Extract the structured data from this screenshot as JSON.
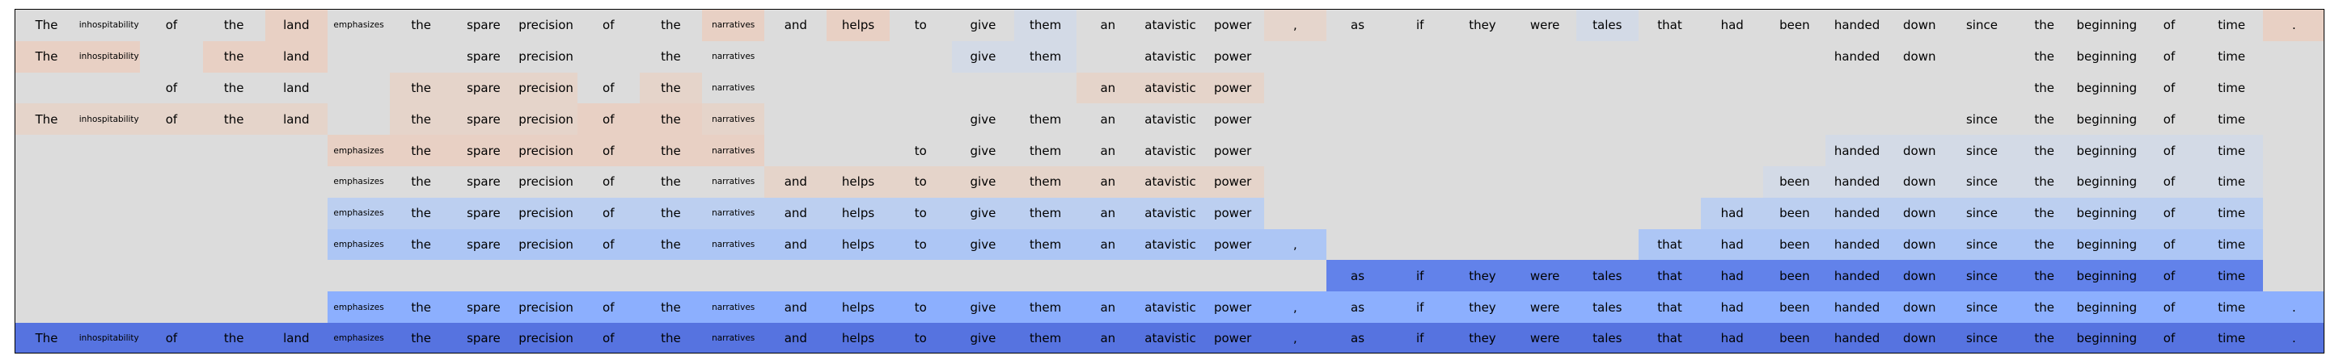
{
  "tokens": [
    "The",
    "inhospitability",
    "of",
    "the",
    "land",
    "emphasizes",
    "the",
    "spare",
    "precision",
    "of",
    "the",
    "narratives",
    "and",
    "helps",
    "to",
    "give",
    "them",
    "an",
    "atavistic",
    "power",
    ",",
    "as",
    "if",
    "they",
    "were",
    "tales",
    "that",
    "had",
    "been",
    "handed",
    "down",
    "since",
    "the",
    "beginning",
    "of",
    "time",
    "."
  ],
  "rows": [
    {
      "tokens": [
        {
          "i": 0,
          "c": "#dcdcdc"
        },
        {
          "i": 1,
          "c": "#dcdcdc"
        },
        {
          "i": 2,
          "c": "#dcdcdc"
        },
        {
          "i": 3,
          "c": "#dcdcdc"
        },
        {
          "i": 4,
          "c": "#e8d0c4"
        },
        {
          "i": 5,
          "c": "#dcdcdc"
        },
        {
          "i": 6,
          "c": "#dcdcdc"
        },
        {
          "i": 7,
          "c": "#dcdcdc"
        },
        {
          "i": 8,
          "c": "#dcdcdc"
        },
        {
          "i": 9,
          "c": "#dcdcdc"
        },
        {
          "i": 10,
          "c": "#dcdcdc"
        },
        {
          "i": 11,
          "c": "#e8d0c4"
        },
        {
          "i": 12,
          "c": "#dcdcdc"
        },
        {
          "i": 13,
          "c": "#e8d0c4"
        },
        {
          "i": 14,
          "c": "#dcdcdc"
        },
        {
          "i": 15,
          "c": "#dcdcdc"
        },
        {
          "i": 16,
          "c": "#d3dae6"
        },
        {
          "i": 17,
          "c": "#dcdcdc"
        },
        {
          "i": 18,
          "c": "#dcdcdc"
        },
        {
          "i": 19,
          "c": "#dcdcdc"
        },
        {
          "i": 20,
          "c": "#e5d5cc"
        },
        {
          "i": 21,
          "c": "#dcdcdc"
        },
        {
          "i": 22,
          "c": "#dcdcdc"
        },
        {
          "i": 23,
          "c": "#dcdcdc"
        },
        {
          "i": 24,
          "c": "#dcdcdc"
        },
        {
          "i": 25,
          "c": "#d3dae6"
        },
        {
          "i": 26,
          "c": "#dcdcdc"
        },
        {
          "i": 27,
          "c": "#dcdcdc"
        },
        {
          "i": 28,
          "c": "#dcdcdc"
        },
        {
          "i": 29,
          "c": "#dcdcdc"
        },
        {
          "i": 30,
          "c": "#dcdcdc"
        },
        {
          "i": 31,
          "c": "#dcdcdc"
        },
        {
          "i": 32,
          "c": "#dcdcdc"
        },
        {
          "i": 33,
          "c": "#dcdcdc"
        },
        {
          "i": 34,
          "c": "#dcdcdc"
        },
        {
          "i": 35,
          "c": "#dcdcdc"
        },
        {
          "i": 36,
          "c": "#e8d0c4"
        }
      ]
    },
    {
      "tokens": [
        {
          "i": 0,
          "c": "#e8d0c4"
        },
        {
          "i": 1,
          "c": "#e8d0c4"
        },
        {
          "i": 3,
          "c": "#e8d0c4"
        },
        {
          "i": 4,
          "c": "#e8d0c4"
        },
        {
          "i": 7,
          "c": "#dcdcdc"
        },
        {
          "i": 8,
          "c": "#dcdcdc"
        },
        {
          "i": 10,
          "c": "#dcdcdc"
        },
        {
          "i": 11,
          "c": "#dcdcdc"
        },
        {
          "i": 15,
          "c": "#d3dae6"
        },
        {
          "i": 16,
          "c": "#d3dae6"
        },
        {
          "i": 18,
          "c": "#dcdcdc"
        },
        {
          "i": 19,
          "c": "#dcdcdc"
        },
        {
          "i": 29,
          "c": "#dcdcdc"
        },
        {
          "i": 30,
          "c": "#dcdcdc"
        },
        {
          "i": 32,
          "c": "#dcdcdc"
        },
        {
          "i": 33,
          "c": "#dcdcdc"
        },
        {
          "i": 34,
          "c": "#dcdcdc"
        },
        {
          "i": 35,
          "c": "#dcdcdc"
        }
      ]
    },
    {
      "tokens": [
        {
          "i": 2,
          "c": "#dcdcdc"
        },
        {
          "i": 3,
          "c": "#dcdcdc"
        },
        {
          "i": 4,
          "c": "#dcdcdc"
        },
        {
          "i": 6,
          "c": "#e5d4ca"
        },
        {
          "i": 7,
          "c": "#e5d4ca"
        },
        {
          "i": 8,
          "c": "#e5d4ca"
        },
        {
          "i": 9,
          "c": "#dcdcdc"
        },
        {
          "i": 10,
          "c": "#e5d4ca"
        },
        {
          "i": 11,
          "c": "#dcdcdc"
        },
        {
          "i": 17,
          "c": "#e5d4ca"
        },
        {
          "i": 18,
          "c": "#e5d4ca"
        },
        {
          "i": 19,
          "c": "#e5d4ca"
        },
        {
          "i": 32,
          "c": "#dcdcdc"
        },
        {
          "i": 33,
          "c": "#dcdcdc"
        },
        {
          "i": 34,
          "c": "#dcdcdc"
        },
        {
          "i": 35,
          "c": "#dcdcdc"
        }
      ]
    },
    {
      "tokens": [
        {
          "i": 0,
          "c": "#e5d4ca"
        },
        {
          "i": 1,
          "c": "#e5d4ca"
        },
        {
          "i": 2,
          "c": "#e5d4ca"
        },
        {
          "i": 3,
          "c": "#e5d4ca"
        },
        {
          "i": 4,
          "c": "#e5d4ca"
        },
        {
          "i": 6,
          "c": "#e5d4ca"
        },
        {
          "i": 7,
          "c": "#e5d4ca"
        },
        {
          "i": 8,
          "c": "#e5d4ca"
        },
        {
          "i": 9,
          "c": "#e8d0c4"
        },
        {
          "i": 10,
          "c": "#e8d0c4"
        },
        {
          "i": 11,
          "c": "#e5d4ca"
        },
        {
          "i": 15,
          "c": "#dcdcdc"
        },
        {
          "i": 16,
          "c": "#dcdcdc"
        },
        {
          "i": 17,
          "c": "#dcdcdc"
        },
        {
          "i": 18,
          "c": "#dcdcdc"
        },
        {
          "i": 19,
          "c": "#dcdcdc"
        },
        {
          "i": 31,
          "c": "#dcdcdc"
        },
        {
          "i": 32,
          "c": "#dcdcdc"
        },
        {
          "i": 33,
          "c": "#dcdcdc"
        },
        {
          "i": 34,
          "c": "#dcdcdc"
        },
        {
          "i": 35,
          "c": "#dcdcdc"
        }
      ]
    },
    {
      "tokens": [
        {
          "i": 5,
          "c": "#e8d0c4"
        },
        {
          "i": 6,
          "c": "#e8d0c4"
        },
        {
          "i": 7,
          "c": "#e8d0c4"
        },
        {
          "i": 8,
          "c": "#e8d0c4"
        },
        {
          "i": 9,
          "c": "#e8d0c4"
        },
        {
          "i": 10,
          "c": "#e8d0c4"
        },
        {
          "i": 11,
          "c": "#e8d0c4"
        },
        {
          "i": 14,
          "c": "#dcdcdc"
        },
        {
          "i": 15,
          "c": "#dcdcdc"
        },
        {
          "i": 16,
          "c": "#dcdcdc"
        },
        {
          "i": 17,
          "c": "#dcdcdc"
        },
        {
          "i": 18,
          "c": "#dcdcdc"
        },
        {
          "i": 19,
          "c": "#dcdcdc"
        },
        {
          "i": 29,
          "c": "#d3dae6"
        },
        {
          "i": 30,
          "c": "#d3dae6"
        },
        {
          "i": 31,
          "c": "#d3dae6"
        },
        {
          "i": 32,
          "c": "#d3dae6"
        },
        {
          "i": 33,
          "c": "#d3dae6"
        },
        {
          "i": 34,
          "c": "#d3dae6"
        },
        {
          "i": 35,
          "c": "#d3dae6"
        }
      ]
    },
    {
      "tokens": [
        {
          "i": 5,
          "c": "#dcdcdc"
        },
        {
          "i": 6,
          "c": "#dcdcdc"
        },
        {
          "i": 7,
          "c": "#dcdcdc"
        },
        {
          "i": 8,
          "c": "#dcdcdc"
        },
        {
          "i": 9,
          "c": "#dcdcdc"
        },
        {
          "i": 10,
          "c": "#dcdcdc"
        },
        {
          "i": 11,
          "c": "#dcdcdc"
        },
        {
          "i": 12,
          "c": "#e5d4ca"
        },
        {
          "i": 13,
          "c": "#e5d4ca"
        },
        {
          "i": 14,
          "c": "#e5d4ca"
        },
        {
          "i": 15,
          "c": "#e5d4ca"
        },
        {
          "i": 16,
          "c": "#e5d4ca"
        },
        {
          "i": 17,
          "c": "#e5d4ca"
        },
        {
          "i": 18,
          "c": "#e5d4ca"
        },
        {
          "i": 19,
          "c": "#e5d4ca"
        },
        {
          "i": 28,
          "c": "#d3dae6"
        },
        {
          "i": 29,
          "c": "#d3dae6"
        },
        {
          "i": 30,
          "c": "#d3dae6"
        },
        {
          "i": 31,
          "c": "#d3dae6"
        },
        {
          "i": 32,
          "c": "#d3dae6"
        },
        {
          "i": 33,
          "c": "#d3dae6"
        },
        {
          "i": 34,
          "c": "#d3dae6"
        },
        {
          "i": 35,
          "c": "#d3dae6"
        }
      ]
    },
    {
      "tokens": [
        {
          "i": 5,
          "c": "#bccff0"
        },
        {
          "i": 6,
          "c": "#bccff0"
        },
        {
          "i": 7,
          "c": "#bccff0"
        },
        {
          "i": 8,
          "c": "#bccff0"
        },
        {
          "i": 9,
          "c": "#bccff0"
        },
        {
          "i": 10,
          "c": "#bccff0"
        },
        {
          "i": 11,
          "c": "#bccff0"
        },
        {
          "i": 12,
          "c": "#bccff0"
        },
        {
          "i": 13,
          "c": "#bccff0"
        },
        {
          "i": 14,
          "c": "#bccff0"
        },
        {
          "i": 15,
          "c": "#bccff0"
        },
        {
          "i": 16,
          "c": "#bccff0"
        },
        {
          "i": 17,
          "c": "#bccff0"
        },
        {
          "i": 18,
          "c": "#bccff0"
        },
        {
          "i": 19,
          "c": "#bccff0"
        },
        {
          "i": 27,
          "c": "#bccff0"
        },
        {
          "i": 28,
          "c": "#bccff0"
        },
        {
          "i": 29,
          "c": "#bccff0"
        },
        {
          "i": 30,
          "c": "#bccff0"
        },
        {
          "i": 31,
          "c": "#bccff0"
        },
        {
          "i": 32,
          "c": "#bccff0"
        },
        {
          "i": 33,
          "c": "#bccff0"
        },
        {
          "i": 34,
          "c": "#bccff0"
        },
        {
          "i": 35,
          "c": "#bccff0"
        }
      ]
    },
    {
      "tokens": [
        {
          "i": 5,
          "c": "#adc6f5"
        },
        {
          "i": 6,
          "c": "#adc6f5"
        },
        {
          "i": 7,
          "c": "#adc6f5"
        },
        {
          "i": 8,
          "c": "#adc6f5"
        },
        {
          "i": 9,
          "c": "#adc6f5"
        },
        {
          "i": 10,
          "c": "#adc6f5"
        },
        {
          "i": 11,
          "c": "#adc6f5"
        },
        {
          "i": 12,
          "c": "#adc6f5"
        },
        {
          "i": 13,
          "c": "#adc6f5"
        },
        {
          "i": 14,
          "c": "#adc6f5"
        },
        {
          "i": 15,
          "c": "#adc6f5"
        },
        {
          "i": 16,
          "c": "#adc6f5"
        },
        {
          "i": 17,
          "c": "#adc6f5"
        },
        {
          "i": 18,
          "c": "#adc6f5"
        },
        {
          "i": 19,
          "c": "#adc6f5"
        },
        {
          "i": 20,
          "c": "#adc6f5"
        },
        {
          "i": 26,
          "c": "#adc6f5"
        },
        {
          "i": 27,
          "c": "#adc6f5"
        },
        {
          "i": 28,
          "c": "#adc6f5"
        },
        {
          "i": 29,
          "c": "#adc6f5"
        },
        {
          "i": 30,
          "c": "#adc6f5"
        },
        {
          "i": 31,
          "c": "#adc6f5"
        },
        {
          "i": 32,
          "c": "#adc6f5"
        },
        {
          "i": 33,
          "c": "#adc6f5"
        },
        {
          "i": 34,
          "c": "#adc6f5"
        },
        {
          "i": 35,
          "c": "#adc6f5"
        }
      ]
    },
    {
      "tokens": [
        {
          "i": 21,
          "c": "#6282ea"
        },
        {
          "i": 22,
          "c": "#6282ea"
        },
        {
          "i": 23,
          "c": "#6282ea"
        },
        {
          "i": 24,
          "c": "#6282ea"
        },
        {
          "i": 25,
          "c": "#6282ea"
        },
        {
          "i": 26,
          "c": "#6282ea"
        },
        {
          "i": 27,
          "c": "#6282ea"
        },
        {
          "i": 28,
          "c": "#6282ea"
        },
        {
          "i": 29,
          "c": "#6282ea"
        },
        {
          "i": 30,
          "c": "#6282ea"
        },
        {
          "i": 31,
          "c": "#6282ea"
        },
        {
          "i": 32,
          "c": "#6282ea"
        },
        {
          "i": 33,
          "c": "#6282ea"
        },
        {
          "i": 34,
          "c": "#6282ea"
        },
        {
          "i": 35,
          "c": "#6282ea"
        }
      ]
    },
    {
      "tokens": [
        {
          "i": 5,
          "c": "#8caffe"
        },
        {
          "i": 6,
          "c": "#8caffe"
        },
        {
          "i": 7,
          "c": "#8caffe"
        },
        {
          "i": 8,
          "c": "#8caffe"
        },
        {
          "i": 9,
          "c": "#8caffe"
        },
        {
          "i": 10,
          "c": "#8caffe"
        },
        {
          "i": 11,
          "c": "#8caffe"
        },
        {
          "i": 12,
          "c": "#8caffe"
        },
        {
          "i": 13,
          "c": "#8caffe"
        },
        {
          "i": 14,
          "c": "#8caffe"
        },
        {
          "i": 15,
          "c": "#8caffe"
        },
        {
          "i": 16,
          "c": "#8caffe"
        },
        {
          "i": 17,
          "c": "#8caffe"
        },
        {
          "i": 18,
          "c": "#8caffe"
        },
        {
          "i": 19,
          "c": "#8caffe"
        },
        {
          "i": 20,
          "c": "#8caffe"
        },
        {
          "i": 21,
          "c": "#8caffe"
        },
        {
          "i": 22,
          "c": "#8caffe"
        },
        {
          "i": 23,
          "c": "#8caffe"
        },
        {
          "i": 24,
          "c": "#8caffe"
        },
        {
          "i": 25,
          "c": "#8caffe"
        },
        {
          "i": 26,
          "c": "#8caffe"
        },
        {
          "i": 27,
          "c": "#8caffe"
        },
        {
          "i": 28,
          "c": "#8caffe"
        },
        {
          "i": 29,
          "c": "#8caffe"
        },
        {
          "i": 30,
          "c": "#8caffe"
        },
        {
          "i": 31,
          "c": "#8caffe"
        },
        {
          "i": 32,
          "c": "#8caffe"
        },
        {
          "i": 33,
          "c": "#8caffe"
        },
        {
          "i": 34,
          "c": "#8caffe"
        },
        {
          "i": 35,
          "c": "#8caffe"
        },
        {
          "i": 36,
          "c": "#8caffe"
        }
      ]
    },
    {
      "tokens": [
        {
          "i": 0,
          "c": "#5673e0"
        },
        {
          "i": 1,
          "c": "#5673e0"
        },
        {
          "i": 2,
          "c": "#5673e0"
        },
        {
          "i": 3,
          "c": "#5673e0"
        },
        {
          "i": 4,
          "c": "#5673e0"
        },
        {
          "i": 5,
          "c": "#5673e0"
        },
        {
          "i": 6,
          "c": "#5673e0"
        },
        {
          "i": 7,
          "c": "#5673e0"
        },
        {
          "i": 8,
          "c": "#5673e0"
        },
        {
          "i": 9,
          "c": "#5673e0"
        },
        {
          "i": 10,
          "c": "#5673e0"
        },
        {
          "i": 11,
          "c": "#5673e0"
        },
        {
          "i": 12,
          "c": "#5673e0"
        },
        {
          "i": 13,
          "c": "#5673e0"
        },
        {
          "i": 14,
          "c": "#5673e0"
        },
        {
          "i": 15,
          "c": "#5673e0"
        },
        {
          "i": 16,
          "c": "#5673e0"
        },
        {
          "i": 17,
          "c": "#5673e0"
        },
        {
          "i": 18,
          "c": "#5673e0"
        },
        {
          "i": 19,
          "c": "#5673e0"
        },
        {
          "i": 20,
          "c": "#5673e0"
        },
        {
          "i": 21,
          "c": "#5673e0"
        },
        {
          "i": 22,
          "c": "#5673e0"
        },
        {
          "i": 23,
          "c": "#5673e0"
        },
        {
          "i": 24,
          "c": "#5673e0"
        },
        {
          "i": 25,
          "c": "#5673e0"
        },
        {
          "i": 26,
          "c": "#5673e0"
        },
        {
          "i": 27,
          "c": "#5673e0"
        },
        {
          "i": 28,
          "c": "#5673e0"
        },
        {
          "i": 29,
          "c": "#5673e0"
        },
        {
          "i": 30,
          "c": "#5673e0"
        },
        {
          "i": 31,
          "c": "#5673e0"
        },
        {
          "i": 32,
          "c": "#5673e0"
        },
        {
          "i": 33,
          "c": "#5673e0"
        },
        {
          "i": 34,
          "c": "#5673e0"
        },
        {
          "i": 35,
          "c": "#5673e0"
        },
        {
          "i": 36,
          "c": "#5673e0"
        }
      ]
    }
  ]
}
